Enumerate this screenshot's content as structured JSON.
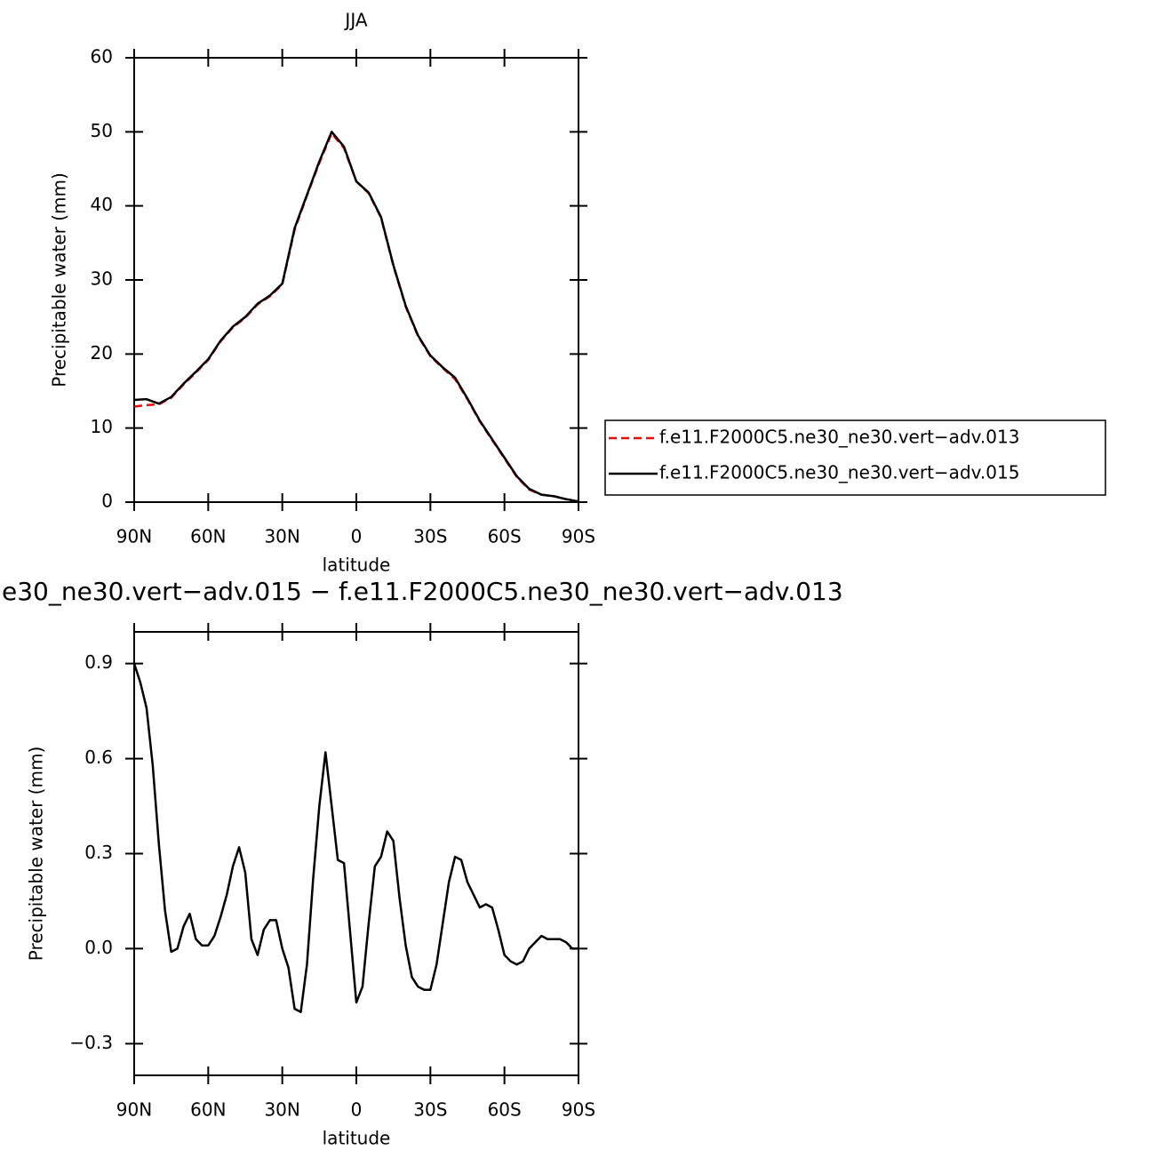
{
  "chart_data": [
    {
      "type": "line",
      "title": "JJA",
      "xlabel": "latitude",
      "ylabel": "Precipitable water (mm)",
      "legend": "outside-right",
      "x": [
        90,
        85,
        80,
        75,
        70,
        65,
        60,
        55,
        50,
        45,
        40,
        35,
        30,
        25,
        20,
        15,
        10,
        5,
        0,
        -5,
        -10,
        -15,
        -20,
        -25,
        -30,
        -35,
        -40,
        -45,
        -50,
        -55,
        -60,
        -65,
        -70,
        -75,
        -80,
        -85,
        -90
      ],
      "series": [
        {
          "name": "f.e11.F2000C5.ne30_ne30.vert−adv.013",
          "color": "#ff0000",
          "dashed": true,
          "values": [
            12.9,
            13.1,
            13.2,
            14.1,
            15.9,
            17.5,
            19.2,
            21.7,
            23.6,
            24.9,
            26.7,
            27.8,
            29.4,
            36.8,
            41.4,
            45.8,
            49.8,
            47.8,
            43.3,
            41.7,
            38.4,
            31.9,
            26.4,
            22.4,
            19.7,
            18.1,
            16.6,
            13.9,
            10.9,
            8.4,
            5.9,
            3.4,
            1.7,
            1.0,
            0.8,
            0.4,
            0.1
          ]
        },
        {
          "name": "f.e11.F2000C5.ne30_ne30.vert−adv.015",
          "color": "#000000",
          "dashed": false,
          "values": [
            13.8,
            13.9,
            13.3,
            14.2,
            16.0,
            17.6,
            19.3,
            21.8,
            23.7,
            25.0,
            26.8,
            27.9,
            29.5,
            37.0,
            41.5,
            46.0,
            50.0,
            48.0,
            43.3,
            41.8,
            38.5,
            32.0,
            26.5,
            22.5,
            19.8,
            18.2,
            16.8,
            14.0,
            11.0,
            8.5,
            6.0,
            3.5,
            1.8,
            1.0,
            0.8,
            0.4,
            0.1
          ]
        }
      ],
      "xlim": [
        90,
        -90
      ],
      "xticks": [
        {
          "value": 90,
          "label": "90N"
        },
        {
          "value": 60,
          "label": "60N"
        },
        {
          "value": 30,
          "label": "30N"
        },
        0,
        {
          "value": -30,
          "label": "30S"
        },
        {
          "value": -60,
          "label": "60S"
        },
        {
          "value": -90,
          "label": "90S"
        }
      ],
      "ylim": [
        0,
        60
      ],
      "yticks": [
        0,
        10,
        20,
        30,
        40,
        50,
        60
      ]
    },
    {
      "type": "line",
      "title": "e30_ne30.vert−adv.015 − f.e11.F2000C5.ne30_ne30.vert−adv.013",
      "xlabel": "latitude",
      "ylabel": "Precipitable water (mm)",
      "x": [
        90,
        87.5,
        85,
        82.5,
        80,
        77.5,
        75,
        72.5,
        70,
        67.5,
        65,
        62.5,
        60,
        57.5,
        55,
        52.5,
        50,
        47.5,
        45,
        42.5,
        40,
        37.5,
        35,
        32.5,
        30,
        27.5,
        25,
        22.5,
        20,
        17.5,
        15,
        12.5,
        10,
        7.5,
        5,
        2.5,
        0,
        -2.5,
        -5,
        -7.5,
        -10,
        -12.5,
        -15,
        -17.5,
        -20,
        -22.5,
        -25,
        -27.5,
        -30,
        -32.5,
        -35,
        -37.5,
        -40,
        -42.5,
        -45,
        -47.5,
        -50,
        -52.5,
        -55,
        -57.5,
        -60,
        -62.5,
        -65,
        -67.5,
        -70,
        -72.5,
        -75,
        -77.5,
        -80,
        -82.5,
        -85,
        -87.5,
        -90
      ],
      "series": [
        {
          "color": "#000000",
          "dashed": false,
          "values": [
            0.9,
            0.84,
            0.76,
            0.58,
            0.33,
            0.12,
            -0.01,
            0.0,
            0.07,
            0.11,
            0.03,
            0.01,
            0.01,
            0.04,
            0.1,
            0.17,
            0.26,
            0.32,
            0.24,
            0.03,
            -0.02,
            0.06,
            0.09,
            0.09,
            0.0,
            -0.06,
            -0.19,
            -0.2,
            -0.05,
            0.22,
            0.45,
            0.62,
            0.45,
            0.28,
            0.27,
            0.05,
            -0.17,
            -0.12,
            0.08,
            0.26,
            0.29,
            0.37,
            0.34,
            0.16,
            0.01,
            -0.09,
            -0.12,
            -0.13,
            -0.13,
            -0.05,
            0.08,
            0.21,
            0.29,
            0.28,
            0.21,
            0.17,
            0.13,
            0.14,
            0.13,
            0.06,
            -0.02,
            -0.04,
            -0.05,
            -0.04,
            0.0,
            0.02,
            0.04,
            0.03,
            0.03,
            0.03,
            0.02,
            0.0,
            0.0
          ]
        }
      ],
      "xlim": [
        90,
        -90
      ],
      "xticks": [
        {
          "value": 90,
          "label": "90N"
        },
        {
          "value": 60,
          "label": "60N"
        },
        {
          "value": 30,
          "label": "30N"
        },
        0,
        {
          "value": -30,
          "label": "30S"
        },
        {
          "value": -60,
          "label": "60S"
        },
        {
          "value": -90,
          "label": "90S"
        }
      ],
      "ylim": [
        -0.4,
        1.0
      ],
      "yticks": [
        {
          "value": -0.3,
          "label": "−0.3"
        },
        {
          "value": 0,
          "label": "0.0"
        },
        0.3,
        0.6,
        0.9
      ]
    }
  ]
}
